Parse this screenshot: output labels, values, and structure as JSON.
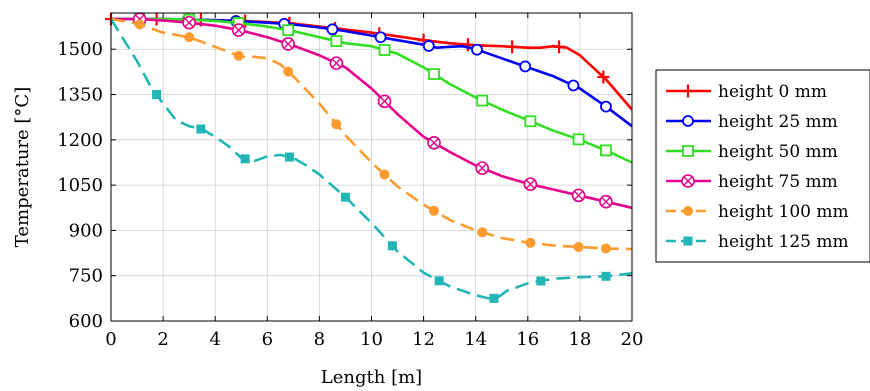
{
  "chart_data": {
    "type": "line",
    "xlabel": "Length [m]",
    "ylabel": "Temperature [°C]",
    "xlim": [
      0,
      20
    ],
    "ylim": [
      600,
      1620
    ],
    "xticks": [
      0,
      2,
      4,
      6,
      8,
      10,
      12,
      14,
      16,
      18,
      20
    ],
    "yticks": [
      600,
      750,
      900,
      1050,
      1200,
      1350,
      1500
    ],
    "grid": true,
    "legend_position": "outside-right",
    "series": [
      {
        "name": "height 0 mm",
        "color": "#ff0000",
        "dash": "solid",
        "marker": "plus",
        "x": [
          0,
          1,
          2,
          3,
          4,
          5,
          6,
          7,
          8,
          9,
          10,
          11,
          12,
          13,
          14,
          15,
          16,
          16.5,
          17,
          17.5,
          18,
          19,
          20
        ],
        "y": [
          1600,
          1600,
          1600,
          1598,
          1596,
          1594,
          1590,
          1585,
          1575,
          1565,
          1555,
          1543,
          1530,
          1520,
          1513,
          1510,
          1505,
          1505,
          1510,
          1505,
          1480,
          1400,
          1300
        ],
        "marker_x": [
          0,
          1.75,
          3.45,
          5.15,
          6.85,
          8.6,
          10.3,
          12.0,
          13.7,
          15.4,
          17.2,
          18.9
        ]
      },
      {
        "name": "height 25 mm",
        "color": "#0000ff",
        "dash": "solid",
        "marker": "circle",
        "x": [
          0,
          1,
          2,
          3,
          4,
          5,
          6,
          7,
          8,
          9,
          10,
          11,
          12,
          12.5,
          13,
          13.5,
          14,
          15,
          16,
          17,
          18,
          19,
          20
        ],
        "y": [
          1600,
          1600,
          1600,
          1598,
          1596,
          1593,
          1588,
          1582,
          1572,
          1560,
          1545,
          1530,
          1515,
          1505,
          1508,
          1510,
          1500,
          1470,
          1440,
          1410,
          1370,
          1310,
          1245
        ],
        "marker_x": [
          1.1,
          2.95,
          4.8,
          6.65,
          8.5,
          10.35,
          12.2,
          14.05,
          15.9,
          17.75,
          19.0
        ]
      },
      {
        "name": "height 50 mm",
        "color": "#33dd22",
        "dash": "solid",
        "marker": "square",
        "x": [
          0,
          1,
          2,
          3,
          4,
          5,
          6,
          7,
          8,
          9,
          10,
          11,
          12,
          13,
          14,
          15,
          16,
          17,
          18,
          19,
          20
        ],
        "y": [
          1600,
          1600,
          1600,
          1598,
          1594,
          1586,
          1575,
          1560,
          1540,
          1520,
          1510,
          1485,
          1440,
          1385,
          1340,
          1300,
          1265,
          1230,
          1200,
          1165,
          1125
        ],
        "marker_x": [
          1.1,
          3.0,
          4.9,
          6.8,
          8.65,
          10.5,
          12.4,
          14.25,
          16.1,
          17.95,
          19.0
        ]
      },
      {
        "name": "height 75 mm",
        "color": "#e6008c",
        "dash": "solid",
        "marker": "otimes",
        "x": [
          0,
          1,
          2,
          3,
          4,
          5,
          6,
          7,
          8,
          9,
          10,
          11,
          12,
          13,
          14,
          15,
          16,
          17,
          18,
          19,
          20
        ],
        "y": [
          1600,
          1600,
          1595,
          1588,
          1578,
          1562,
          1540,
          1512,
          1480,
          1440,
          1370,
          1285,
          1210,
          1160,
          1115,
          1080,
          1055,
          1035,
          1015,
          995,
          975
        ],
        "marker_x": [
          1.1,
          3.0,
          4.9,
          6.8,
          8.65,
          10.5,
          12.4,
          14.25,
          16.1,
          17.95,
          19.0
        ]
      },
      {
        "name": "height 100 mm",
        "color": "#ff9a2e",
        "dash": "dashed",
        "marker": "dot",
        "x": [
          0,
          1,
          2,
          3,
          4,
          5,
          5.5,
          6,
          6.5,
          7,
          8,
          9,
          10,
          11,
          12,
          13,
          14,
          15,
          16,
          17,
          18,
          19,
          20
        ],
        "y": [
          1600,
          1585,
          1555,
          1540,
          1508,
          1475,
          1475,
          1470,
          1450,
          1410,
          1320,
          1215,
          1125,
          1045,
          985,
          935,
          900,
          875,
          860,
          850,
          845,
          840,
          838
        ],
        "marker_x": [
          1.1,
          3.0,
          4.9,
          6.8,
          8.65,
          10.5,
          12.4,
          14.25,
          16.1,
          17.95,
          19.0
        ]
      },
      {
        "name": "height 125 mm",
        "color": "#22b5b5",
        "dash": "dashed",
        "marker": "square-filled",
        "x": [
          0,
          1,
          1.5,
          2,
          2.5,
          3,
          3.5,
          4,
          4.5,
          5,
          5.5,
          6,
          6.5,
          7,
          7.5,
          8,
          9,
          10,
          11,
          12,
          13,
          14,
          14.5,
          14.8,
          15.2,
          16,
          17,
          18,
          19,
          20
        ],
        "y": [
          1600,
          1460,
          1380,
          1320,
          1265,
          1245,
          1235,
          1210,
          1180,
          1140,
          1130,
          1145,
          1150,
          1140,
          1115,
          1085,
          1010,
          925,
          830,
          760,
          715,
          685,
          675,
          675,
          700,
          725,
          740,
          745,
          748,
          758
        ],
        "marker_x": [
          1.75,
          3.45,
          5.15,
          6.85,
          9.0,
          10.8,
          12.6,
          14.7,
          16.5,
          19.0
        ]
      }
    ]
  }
}
